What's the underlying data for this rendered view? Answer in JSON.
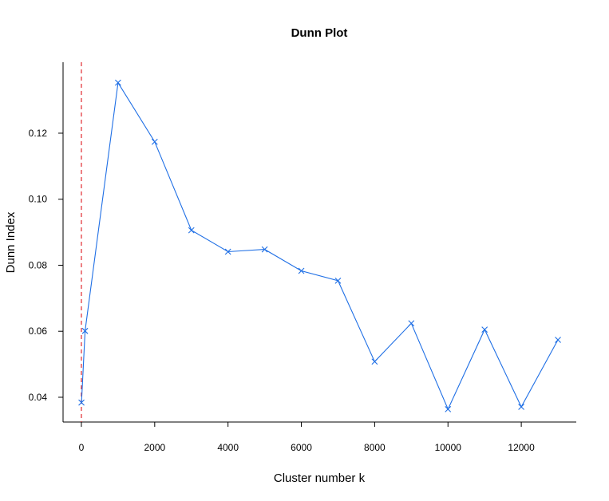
{
  "chart_data": {
    "type": "line",
    "title": "Dunn Plot",
    "xlabel": "Cluster number k",
    "ylabel": "Dunn Index",
    "x": [
      2,
      100,
      1000,
      2000,
      3000,
      4000,
      5000,
      6000,
      7000,
      8000,
      9000,
      10000,
      11000,
      12000,
      13000
    ],
    "series": [
      {
        "values": [
          0.0384,
          0.0601,
          0.1353,
          0.1174,
          0.0906,
          0.0841,
          0.0848,
          0.0783,
          0.0753,
          0.0508,
          0.0624,
          0.0364,
          0.0605,
          0.0371,
          0.0574
        ],
        "color": "#1f6fe5",
        "marker": "x"
      }
    ],
    "xlim": [
      -500,
      13500
    ],
    "ylim": [
      0.0325,
      0.1415
    ],
    "xticks": [
      0,
      2000,
      4000,
      6000,
      8000,
      10000,
      12000
    ],
    "xtick_labels": [
      "0",
      "2000",
      "4000",
      "6000",
      "8000",
      "10000",
      "12000"
    ],
    "yticks": [
      0.04,
      0.06,
      0.08,
      0.1,
      0.12
    ],
    "ytick_labels": [
      "0.04",
      "0.06",
      "0.08",
      "0.10",
      "0.12"
    ],
    "reference_line": {
      "orientation": "vertical",
      "x": 0,
      "style": "dashed",
      "color": "#e0282e"
    },
    "grid": false,
    "legend": "none"
  }
}
